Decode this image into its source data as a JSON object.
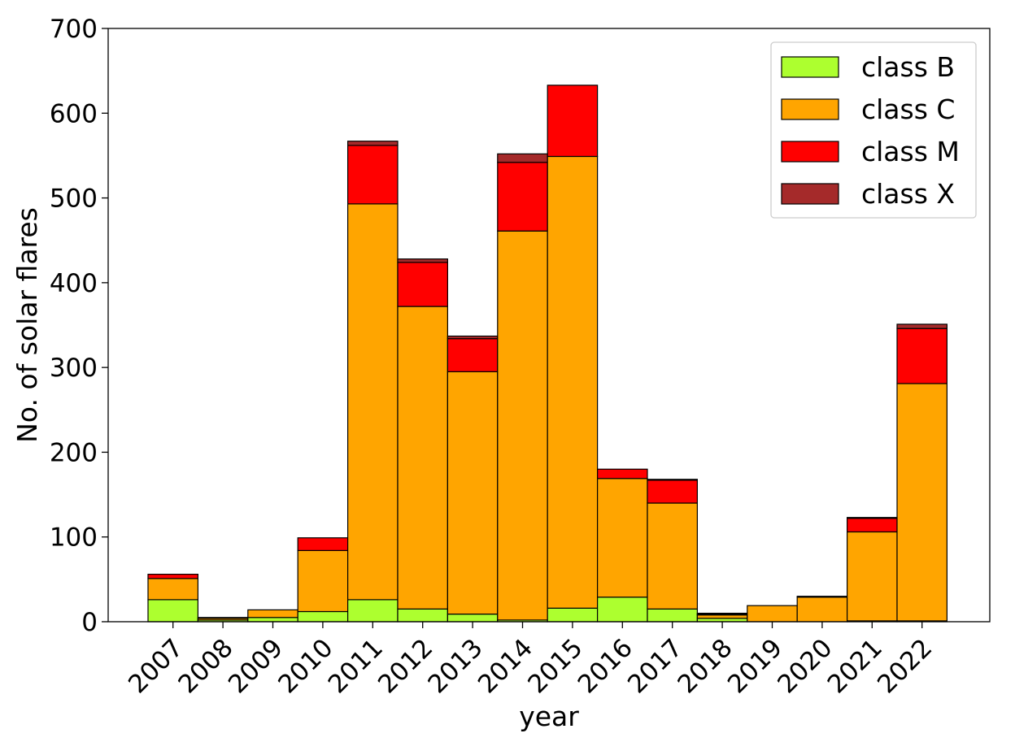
{
  "chart_data": {
    "type": "bar",
    "stacked": true,
    "title": "",
    "xlabel": "year",
    "ylabel": "No. of solar flares",
    "ylim": [
      0,
      700
    ],
    "yticks": [
      0,
      100,
      200,
      300,
      400,
      500,
      600,
      700
    ],
    "grid": false,
    "legend_position": "top-right",
    "categories": [
      "2007",
      "2008",
      "2009",
      "2010",
      "2011",
      "2012",
      "2013",
      "2014",
      "2015",
      "2016",
      "2017",
      "2018",
      "2019",
      "2020",
      "2021",
      "2022"
    ],
    "series": [
      {
        "name": "class B",
        "color": "#adff2f",
        "values": [
          26,
          2,
          5,
          12,
          26,
          15,
          9,
          2,
          16,
          29,
          15,
          4,
          0,
          0,
          1,
          1
        ]
      },
      {
        "name": "class C",
        "color": "#ffa500",
        "values": [
          25,
          2,
          9,
          72,
          467,
          357,
          286,
          459,
          533,
          140,
          125,
          4,
          19,
          29,
          105,
          280
        ]
      },
      {
        "name": "class M",
        "color": "#ff0000",
        "values": [
          5,
          1,
          0,
          15,
          69,
          52,
          39,
          81,
          84,
          11,
          27,
          1,
          0,
          1,
          16,
          65
        ]
      },
      {
        "name": "class X",
        "color": "#a52a2a",
        "values": [
          0,
          0,
          0,
          0,
          5,
          4,
          3,
          10,
          0,
          0,
          1,
          1,
          0,
          0,
          1,
          5
        ]
      }
    ]
  }
}
